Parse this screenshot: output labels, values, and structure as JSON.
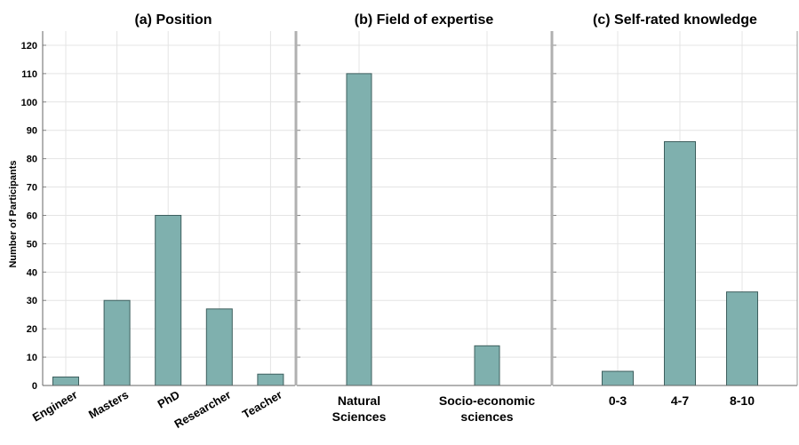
{
  "figure": {
    "ylabel": "Number of Participants",
    "bar_color": "#7fb0ae",
    "bar_edge": "#3d5f5e",
    "grid_color": "#e4e4e4",
    "divider_color": "#b0b0b0"
  },
  "chart_data": [
    {
      "type": "bar",
      "title": "(a) Position",
      "categories": [
        "Engineer",
        "Masters",
        "PhD",
        "Researcher",
        "Teacher"
      ],
      "values": [
        3,
        30,
        60,
        27,
        4
      ],
      "ylabel": "Number of Participants",
      "ylim": [
        0,
        125
      ],
      "yticks": [
        0,
        10,
        20,
        30,
        40,
        50,
        60,
        70,
        80,
        90,
        100,
        110,
        120
      ],
      "grid": true
    },
    {
      "type": "bar",
      "title": "(b) Field of expertise",
      "categories": [
        "Natural Sciences",
        "Socio-economic sciences"
      ],
      "values": [
        110,
        14
      ],
      "ylim": [
        0,
        125
      ],
      "grid": true
    },
    {
      "type": "bar",
      "title": "(c) Self-rated knowledge",
      "categories": [
        "0-3",
        "4-7",
        "8-10"
      ],
      "values": [
        5,
        86,
        33
      ],
      "ylim": [
        0,
        125
      ],
      "grid": true
    }
  ]
}
